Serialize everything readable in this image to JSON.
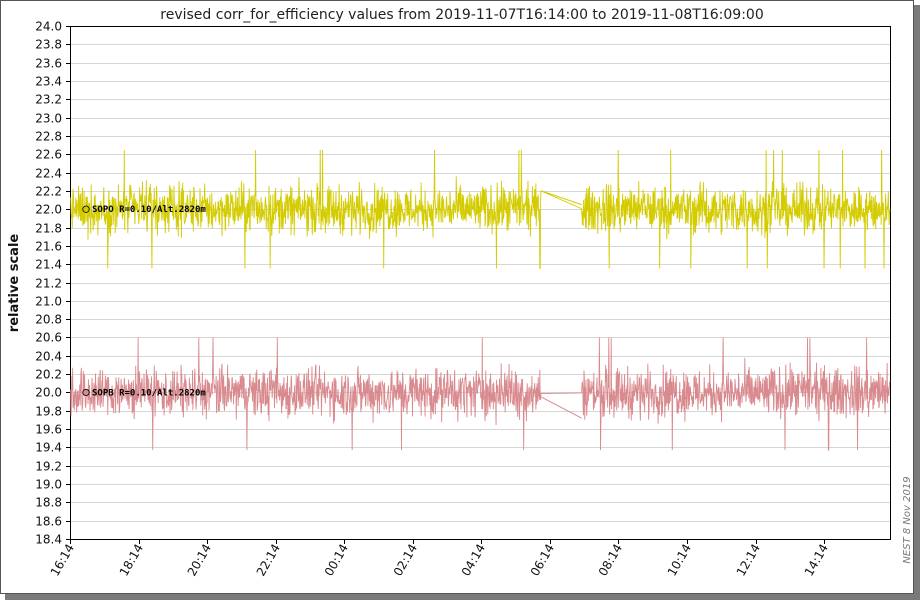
{
  "chart_data": {
    "type": "line",
    "title": "revised corr_for_efficiency values from 2019-11-07T16:14:00 to 2019-11-08T16:09:00",
    "xlabel": "",
    "ylabel": "relative scale",
    "ylim": [
      18.4,
      24.0
    ],
    "yticks": [
      "24.0",
      "23.8",
      "23.6",
      "23.4",
      "23.2",
      "23.0",
      "22.8",
      "22.6",
      "22.4",
      "22.2",
      "22.0",
      "21.8",
      "21.6",
      "21.4",
      "21.2",
      "21.0",
      "20.8",
      "20.6",
      "20.4",
      "20.2",
      "20.0",
      "19.8",
      "19.6",
      "19.4",
      "19.2",
      "19.0",
      "18.8",
      "18.6",
      "18.4"
    ],
    "xticks": [
      "16:14",
      "18:14",
      "20:14",
      "22:14",
      "00:14",
      "02:14",
      "04:14",
      "06:14",
      "08:14",
      "10:14",
      "12:14",
      "14:14"
    ],
    "xrange_hours": [
      0,
      23.92
    ],
    "gap_hours": [
      13.75,
      14.92
    ],
    "grid": true,
    "series": [
      {
        "name": "SOPO R=0.10/Alt.2820m",
        "color": "#d4cc00",
        "mean": 22.0,
        "spread": 0.38,
        "peak_max": 22.76,
        "peak_min": 21.31,
        "gap_values": [
          22.2,
          22.05
        ]
      },
      {
        "name": "SOPB R=0.10/Alt.2820m",
        "color": "#d98a8e",
        "mean": 20.0,
        "spread": 0.4,
        "peak_max": 20.6,
        "peak_min": 19.37,
        "gap_values": [
          19.95,
          19.72
        ]
      }
    ]
  },
  "credit": "NEST  8 Nov 2019"
}
